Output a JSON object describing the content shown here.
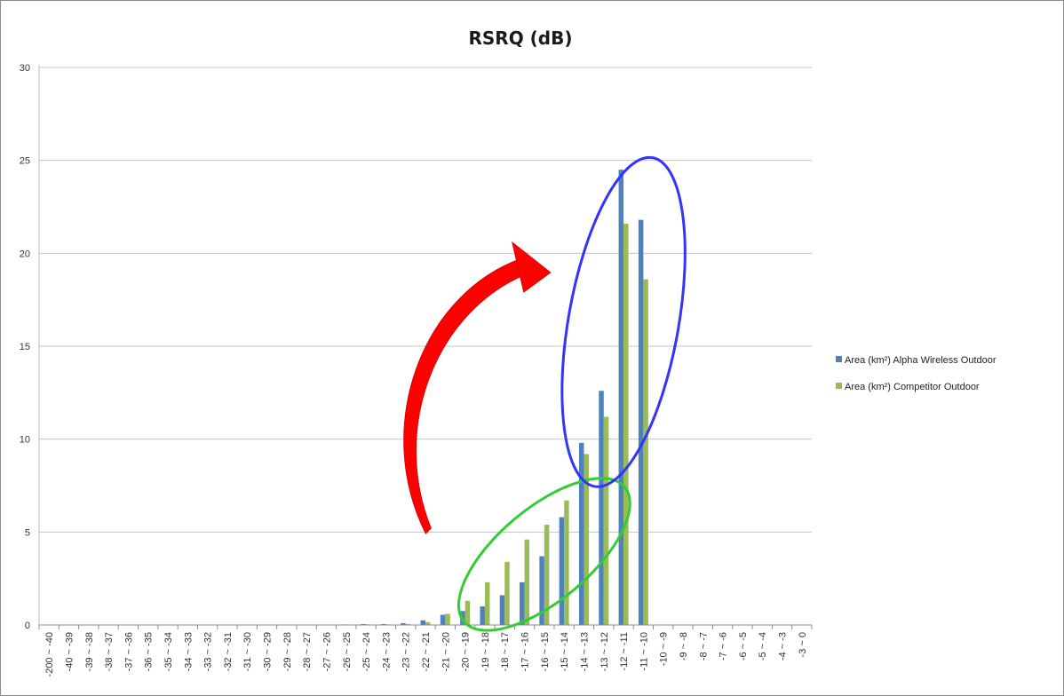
{
  "chart_data": {
    "type": "bar",
    "title": "RSRQ (dB)",
    "xlabel": "",
    "ylabel": "",
    "ylim": [
      0,
      30
    ],
    "yticks": [
      0,
      5,
      10,
      15,
      20,
      25,
      30
    ],
    "grid": true,
    "legend_position": "right",
    "categories": [
      "-200 ~ -40",
      "-40 ~ -39",
      "-39 ~ -38",
      "-38 ~ -37",
      "-37 ~ -36",
      "-36 ~ -35",
      "-35 ~ -34",
      "-34 ~ -33",
      "-33 ~ -32",
      "-32 ~ -31",
      "-31 ~ -30",
      "-30 ~ -29",
      "-29 ~ -28",
      "-28 ~ -27",
      "-27 ~ -26",
      "-26 ~ -25",
      "-25 ~ -24",
      "-24 ~ -23",
      "-23 ~ -22",
      "-22 ~ -21",
      "-21 ~ -20",
      "-20 ~ -19",
      "-19 ~ -18",
      "-18 ~ -17",
      "-17 ~ -16",
      "-16 ~ -15",
      "-15 ~ -14",
      "-14 ~ -13",
      "-13 ~ -12",
      "-12 ~ -11",
      "-11 ~ -10",
      "-10 ~ -9",
      "-9 ~ -8",
      "-8 ~ -7",
      "-7 ~ -6",
      "-6 ~ -5",
      "-5 ~ -4",
      "-4 ~ -3",
      "-3 ~ 0"
    ],
    "series": [
      {
        "name": "Area (km²) Alpha Wireless Outdoor",
        "color": "#4f81bd",
        "values": [
          0,
          0,
          0,
          0,
          0,
          0,
          0,
          0,
          0,
          0,
          0,
          0,
          0,
          0,
          0,
          0.03,
          0.05,
          0.05,
          0.1,
          0.25,
          0.55,
          0.75,
          1.0,
          1.6,
          2.3,
          3.7,
          5.8,
          9.8,
          12.6,
          24.5,
          21.8,
          0,
          0,
          0,
          0,
          0,
          0,
          0,
          0
        ]
      },
      {
        "name": "Area (km²) Competitor Outdoor",
        "color": "#9bbb59",
        "values": [
          0,
          0,
          0,
          0,
          0,
          0,
          0,
          0,
          0,
          0,
          0,
          0,
          0,
          0,
          0,
          0.02,
          0.03,
          0.03,
          0.05,
          0.15,
          0.6,
          1.3,
          2.3,
          3.4,
          4.6,
          5.4,
          6.7,
          9.2,
          11.2,
          21.6,
          18.6,
          0,
          0,
          0,
          0,
          0,
          0,
          0,
          0
        ]
      }
    ],
    "annotations": [
      {
        "type": "ellipse",
        "color": "#33cc33",
        "cx_category": "-16 ~ -15",
        "cy": 3.8
      },
      {
        "type": "ellipse",
        "color": "#3333ff",
        "cx_category": "-12 ~ -11",
        "cy": 16.3
      },
      {
        "type": "curved-arrow",
        "color": "#ff0000",
        "from_category": "-21 ~ -20",
        "to_category": "-13 ~ -12"
      }
    ]
  }
}
